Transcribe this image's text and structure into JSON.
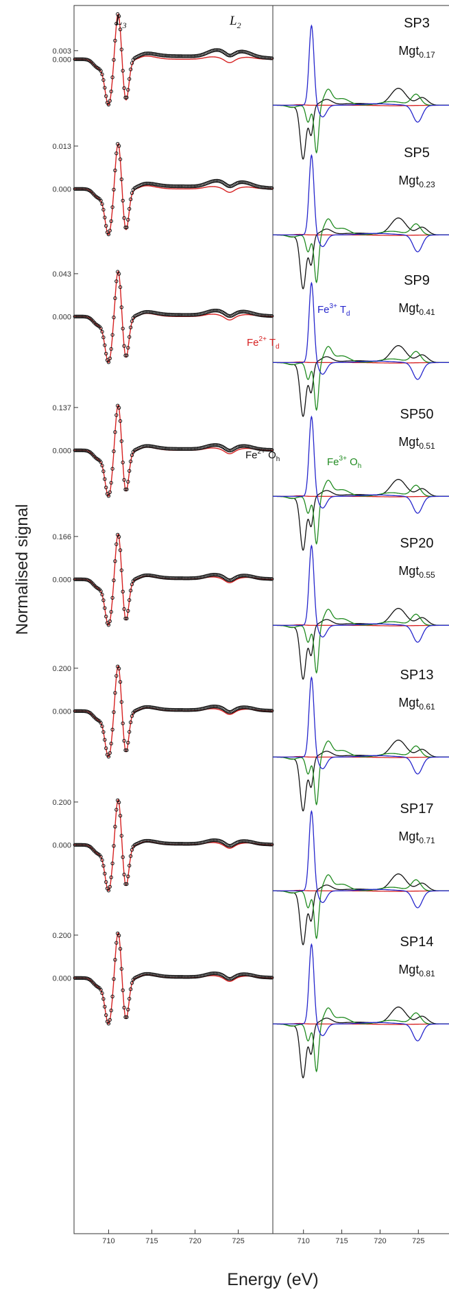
{
  "figure": {
    "ylabel": "Normalised signal",
    "xlabel": "Energy (eV)",
    "edge_labels": {
      "L3": "L",
      "L3_sub": "3",
      "L2": "L",
      "L2_sub": "2"
    },
    "zero_label": "0.000",
    "x_ticks": [
      "710",
      "715",
      "720",
      "725"
    ],
    "samples": [
      {
        "id": "SP3",
        "mgt_prefix": "Mgt",
        "mgt_value": "0.17",
        "ymax_label": "0.003"
      },
      {
        "id": "SP5",
        "mgt_prefix": "Mgt",
        "mgt_value": "0.23",
        "ymax_label": "0.013"
      },
      {
        "id": "SP9",
        "mgt_prefix": "Mgt",
        "mgt_value": "0.41",
        "ymax_label": "0.043"
      },
      {
        "id": "SP50",
        "mgt_prefix": "Mgt",
        "mgt_value": "0.51",
        "ymax_label": "0.137"
      },
      {
        "id": "SP20",
        "mgt_prefix": "Mgt",
        "mgt_value": "0.55",
        "ymax_label": "0.166"
      },
      {
        "id": "SP13",
        "mgt_prefix": "Mgt",
        "mgt_value": "0.61",
        "ymax_label": "0.200"
      },
      {
        "id": "SP17",
        "mgt_prefix": "Mgt",
        "mgt_value": "0.71",
        "ymax_label": "0.200"
      },
      {
        "id": "SP14",
        "mgt_prefix": "Mgt",
        "mgt_value": "0.81",
        "ymax_label": "0.200"
      }
    ],
    "component_labels": {
      "fe2_td": {
        "base": "Fe",
        "sup": "2+",
        "site": " T",
        "sub": "d",
        "color": "#d62020"
      },
      "fe3_td": {
        "base": "Fe",
        "sup": "3+",
        "site": " T",
        "sub": "d",
        "color": "#2424cc"
      },
      "fe2_oh": {
        "base": "Fe",
        "sup": "2+",
        "site": " O",
        "sub": "h",
        "color": "#111111"
      },
      "fe3_oh": {
        "base": "Fe",
        "sup": "3+",
        "site": " O",
        "sub": "h",
        "color": "#1f8a1f"
      }
    }
  },
  "chart_data": {
    "type": "line",
    "xlabel": "Energy (eV)",
    "ylabel": "Normalised signal",
    "xlim": [
      706,
      729
    ],
    "panels": [
      {
        "sample": "SP3",
        "ymax": 0.003
      },
      {
        "sample": "SP5",
        "ymax": 0.013
      },
      {
        "sample": "SP9",
        "ymax": 0.043
      },
      {
        "sample": "SP50",
        "ymax": 0.137
      },
      {
        "sample": "SP20",
        "ymax": 0.166
      },
      {
        "sample": "SP13",
        "ymax": 0.2
      },
      {
        "sample": "SP17",
        "ymax": 0.2
      },
      {
        "sample": "SP14",
        "ymax": 0.2
      }
    ],
    "colors": {
      "data_points": "#111111",
      "fit": "#d62020",
      "fe2_oh": "#111111",
      "fe3_oh": "#1f8a1f",
      "fe3_td": "#2424cc",
      "fe2_td": "#d62020"
    }
  }
}
